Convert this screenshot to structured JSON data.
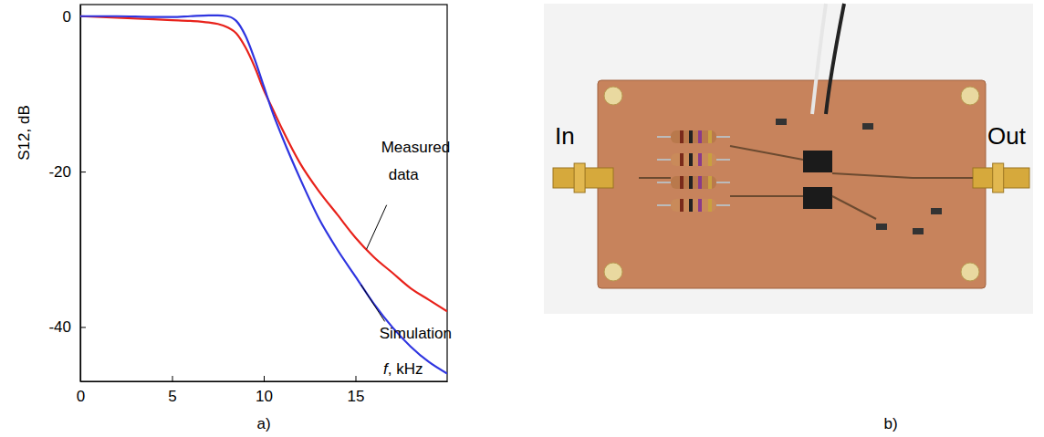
{
  "chart_data": {
    "type": "line",
    "caption": "a)",
    "x_label": "f, kHz",
    "y_label": "S12, dB",
    "x": [
      0,
      2,
      4,
      5,
      6,
      7,
      7.5,
      8,
      8.5,
      9,
      9.5,
      10,
      10.5,
      11,
      12,
      13,
      14,
      15,
      16,
      17,
      18,
      19,
      20
    ],
    "series": [
      {
        "name": "Measured data",
        "color": "#e8221b",
        "values": [
          0,
          -0.2,
          -0.4,
          -0.5,
          -0.6,
          -0.8,
          -1,
          -1.4,
          -2.2,
          -4,
          -6.5,
          -9.5,
          -12,
          -14.5,
          -19,
          -22.5,
          -25.5,
          -28.5,
          -31,
          -33,
          -35,
          -36.5,
          -38
        ]
      },
      {
        "name": "Simulation",
        "color": "#2f35e0",
        "values": [
          0,
          0,
          -0.1,
          -0.1,
          0,
          0.1,
          0.1,
          0,
          -0.6,
          -2.5,
          -5.5,
          -9,
          -12.5,
          -15.5,
          -21,
          -26,
          -30,
          -33.5,
          -37,
          -40,
          -42.5,
          -44.5,
          -46
        ]
      }
    ],
    "xlim": [
      0,
      20
    ],
    "xticks": [
      0,
      5,
      10,
      15
    ],
    "ylim": [
      -47,
      1.5
    ],
    "yticks": [
      0,
      -20,
      -40
    ],
    "grid": false
  },
  "photo": {
    "caption": "b)",
    "labels": [
      "In",
      "Out"
    ]
  }
}
